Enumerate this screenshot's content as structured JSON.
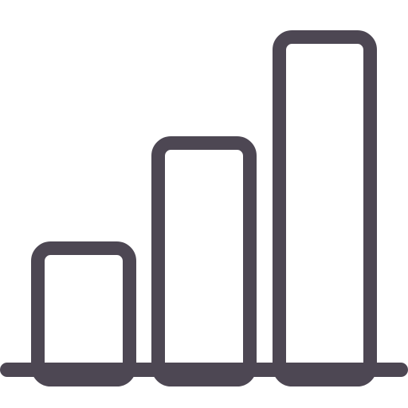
{
  "icon": {
    "name": "bar-chart-icon",
    "stroke_color": "#4d4753",
    "background_color": "#ffffff"
  }
}
